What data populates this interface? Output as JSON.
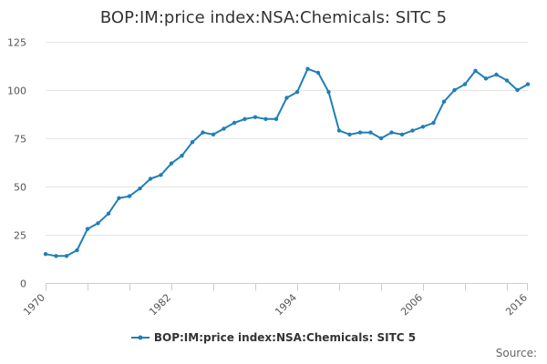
{
  "chart_data": {
    "type": "line",
    "title": "BOP:IM:price index:NSA:Chemicals: SITC 5",
    "xlabel": "",
    "ylabel": "",
    "x": [
      1970,
      1971,
      1972,
      1973,
      1974,
      1975,
      1976,
      1977,
      1978,
      1979,
      1980,
      1981,
      1982,
      1983,
      1984,
      1985,
      1986,
      1987,
      1988,
      1989,
      1990,
      1991,
      1992,
      1993,
      1994,
      1995,
      1996,
      1997,
      1998,
      1999,
      2000,
      2001,
      2002,
      2003,
      2004,
      2005,
      2006,
      2007,
      2008,
      2009,
      2010,
      2011,
      2012,
      2013,
      2014,
      2015,
      2016
    ],
    "xtick_labels": [
      "1970",
      "1982",
      "1994",
      "2006",
      "2016"
    ],
    "ylim": [
      0,
      125
    ],
    "yticks": [
      0,
      25,
      50,
      75,
      100,
      125
    ],
    "series": [
      {
        "name": "BOP:IM:price index:NSA:Chemicals: SITC 5",
        "color": "#1f7fb8",
        "values": [
          15,
          14,
          14,
          17,
          28,
          31,
          36,
          44,
          45,
          49,
          54,
          56,
          62,
          66,
          73,
          78,
          77,
          80,
          83,
          85,
          86,
          85,
          85,
          96,
          99,
          111,
          109,
          99,
          79,
          77,
          78,
          78,
          75,
          78,
          77,
          79,
          81,
          83,
          94,
          100,
          103,
          110,
          106,
          108,
          105,
          100,
          103
        ]
      }
    ],
    "legend": "bottom",
    "grid": true
  },
  "credits": {
    "text": "Source:"
  }
}
